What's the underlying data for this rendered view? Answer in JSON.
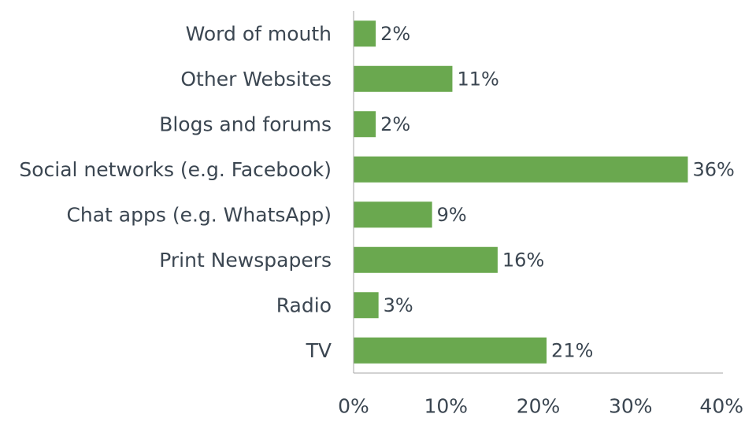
{
  "chart_data": {
    "type": "bar",
    "orientation": "horizontal",
    "categories": [
      "Word of mouth",
      "Other Websites",
      "Blogs and forums",
      "Social networks (e.g. Facebook)",
      "Chat apps (e.g. WhatsApp)",
      "Print Newspapers",
      "Radio",
      "TV"
    ],
    "values": [
      2.4,
      10.7,
      2.4,
      36.2,
      8.5,
      15.6,
      2.7,
      20.9
    ],
    "data_labels": [
      "2%",
      "11%",
      "2%",
      "36%",
      "9%",
      "16%",
      "3%",
      "21%"
    ],
    "xlim": [
      0,
      40
    ],
    "x_ticks": [
      0,
      10,
      20,
      30,
      40
    ],
    "x_tick_labels": [
      "0%",
      "10%",
      "20%",
      "30%",
      "40%"
    ],
    "bar_color": "#6aa84f",
    "text_color": "#3b4651",
    "grid": false,
    "legend": "none"
  }
}
